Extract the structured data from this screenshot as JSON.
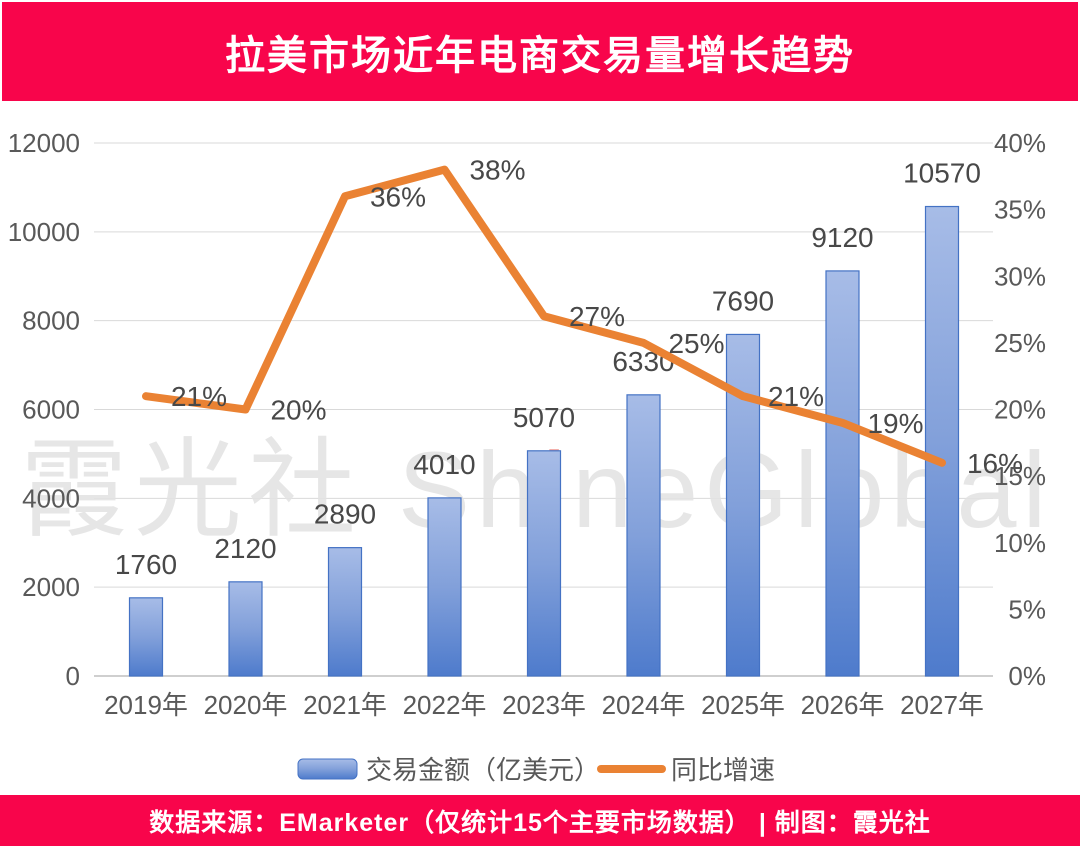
{
  "header": {
    "title": "拉美市场近年电商交易量增长趋势",
    "background": "#F8054B",
    "text_color": "#FFFFFF"
  },
  "footer": {
    "text": "数据来源：EMarketer（仅统计15个主要市场数据） | 制图：霞光社",
    "background": "#F8054B",
    "text_color": "#FFFFFF"
  },
  "watermark": {
    "prefix": "霞光社 Sh",
    "highlight": "i",
    "suffix": "neGlobal",
    "color": "#E4E4E4",
    "highlight_color": "#F2A7A1"
  },
  "colors": {
    "gridline": "#D9D9D9",
    "axis_line": "#BFBFBF",
    "tick_text": "#595959",
    "data_label_text": "#484848",
    "bar_border": "#4472C4",
    "bar_gradient_top": "#A7BCE7",
    "bar_gradient_mid": "#82A0DA",
    "bar_gradient_bottom": "#4E7BCC",
    "line": "#EA8233"
  },
  "chart_data": {
    "type": "combo bar+line",
    "categories": [
      "2019年",
      "2020年",
      "2021年",
      "2022年",
      "2023年",
      "2024年",
      "2025年",
      "2026年",
      "2027年"
    ],
    "series": [
      {
        "name": "交易金额（亿美元）",
        "type": "bar",
        "axis": "left",
        "values": [
          1760,
          2120,
          2890,
          4010,
          5070,
          6330,
          7690,
          9120,
          10570
        ],
        "data_labels": [
          "1760",
          "2120",
          "2890",
          "4010",
          "5070",
          "6330",
          "7690",
          "9120",
          "10570"
        ]
      },
      {
        "name": "同比增速",
        "type": "line",
        "axis": "right",
        "values": [
          21,
          20,
          36,
          38,
          27,
          25,
          21,
          19,
          16
        ],
        "data_labels": [
          "21%",
          "20%",
          "36%",
          "38%",
          "27%",
          "25%",
          "21%",
          "19%",
          "16%"
        ]
      }
    ],
    "left_axis": {
      "min": 0,
      "max": 12000,
      "step": 2000,
      "tick_labels": [
        "0",
        "2000",
        "4000",
        "6000",
        "8000",
        "10000",
        "12000"
      ]
    },
    "right_axis": {
      "min": 0,
      "max": 40,
      "step": 5,
      "tick_labels": [
        "0%",
        "5%",
        "10%",
        "15%",
        "20%",
        "25%",
        "30%",
        "35%",
        "40%"
      ]
    },
    "grid": "horizontal gridlines on",
    "legend_position": "bottom"
  }
}
